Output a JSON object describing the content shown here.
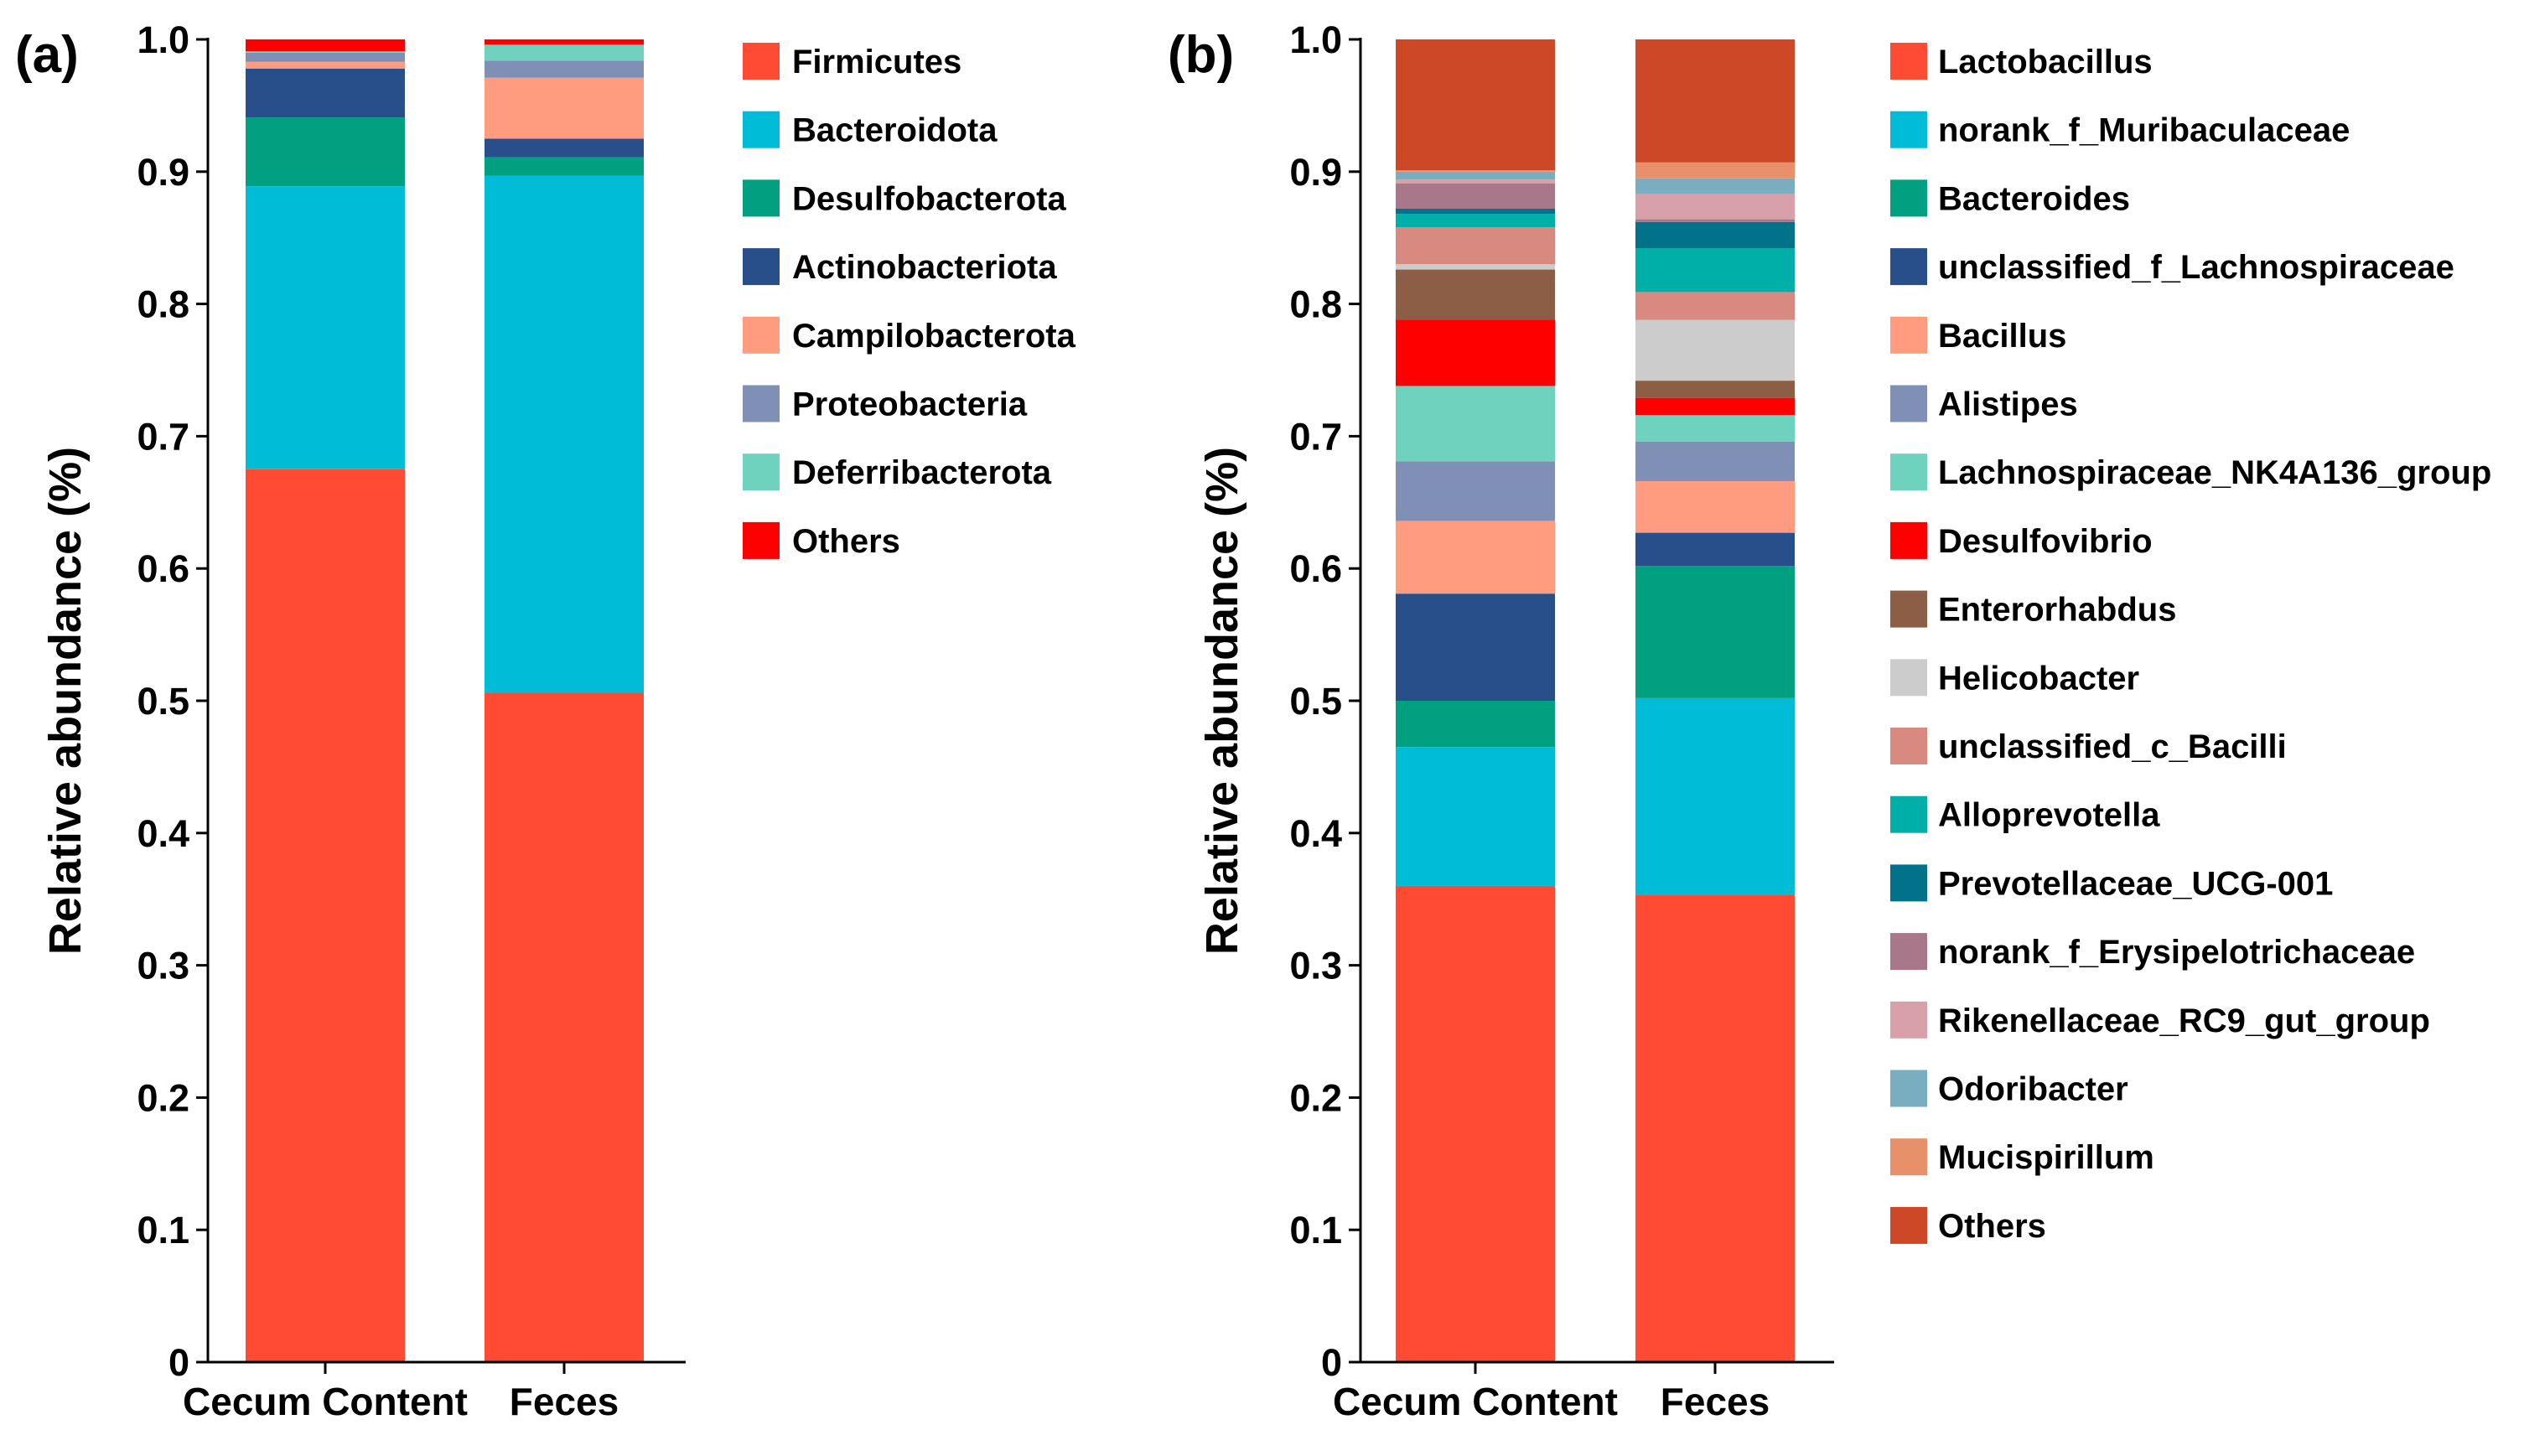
{
  "chart_data": [
    {
      "type": "bar",
      "stacked": true,
      "panel_label": "(a)",
      "ylabel": "Relative abundance (%)",
      "ylim": [
        0,
        1.0
      ],
      "yticks": [
        "0",
        "0.1",
        "0.2",
        "0.3",
        "0.4",
        "0.5",
        "0.6",
        "0.7",
        "0.8",
        "0.9",
        "1.0"
      ],
      "categories": [
        "Cecum Content",
        "Feces"
      ],
      "series": [
        {
          "name": "Firmicutes",
          "color": "#FF4B33",
          "values": [
            0.675,
            0.506
          ]
        },
        {
          "name": "Bacteroidota",
          "color": "#00BCD6",
          "values": [
            0.214,
            0.391
          ]
        },
        {
          "name": "Desulfobacterota",
          "color": "#00A080",
          "values": [
            0.052,
            0.014
          ]
        },
        {
          "name": "Actinobacteriota",
          "color": "#284F8A",
          "values": [
            0.037,
            0.014
          ]
        },
        {
          "name": "Campilobacterota",
          "color": "#FF9C80",
          "values": [
            0.005,
            0.046
          ]
        },
        {
          "name": "Proteobacteria",
          "color": "#7F8FB5",
          "values": [
            0.007,
            0.013
          ]
        },
        {
          "name": "Deferribacterota",
          "color": "#6FD2BF",
          "values": [
            0.001,
            0.012
          ]
        },
        {
          "name": "Others",
          "color": "#FF0000",
          "values": [
            0.009,
            0.004
          ]
        }
      ]
    },
    {
      "type": "bar",
      "stacked": true,
      "panel_label": "(b)",
      "ylabel": "Relative abundance (%)",
      "ylim": [
        0,
        1.0
      ],
      "yticks": [
        "0",
        "0.1",
        "0.2",
        "0.3",
        "0.4",
        "0.5",
        "0.6",
        "0.7",
        "0.8",
        "0.9",
        "1.0"
      ],
      "categories": [
        "Cecum Content",
        "Feces"
      ],
      "series": [
        {
          "name": "Lactobacillus",
          "color": "#FF4B33",
          "values": [
            0.36,
            0.353
          ]
        },
        {
          "name": "norank_f_Muribaculaceae",
          "color": "#00BCD6",
          "values": [
            0.105,
            0.149
          ]
        },
        {
          "name": "Bacteroides",
          "color": "#00A080",
          "values": [
            0.035,
            0.1
          ]
        },
        {
          "name": "unclassified_f_Lachnospiraceae",
          "color": "#284F8A",
          "values": [
            0.081,
            0.025
          ]
        },
        {
          "name": "Bacillus",
          "color": "#FF9C80",
          "values": [
            0.055,
            0.039
          ]
        },
        {
          "name": "Alistipes",
          "color": "#7F8FB5",
          "values": [
            0.045,
            0.03
          ]
        },
        {
          "name": "Lachnospiraceae_NK4A136_group",
          "color": "#6FD2BF",
          "values": [
            0.057,
            0.02
          ]
        },
        {
          "name": "Desulfovibrio",
          "color": "#FF0000",
          "values": [
            0.05,
            0.013
          ]
        },
        {
          "name": "Enterorhabdus",
          "color": "#8B5E45",
          "values": [
            0.038,
            0.013
          ]
        },
        {
          "name": "Helicobacter",
          "color": "#CCCCCC",
          "values": [
            0.004,
            0.046
          ]
        },
        {
          "name": "unclassified_c_Bacilli",
          "color": "#D88A80",
          "values": [
            0.028,
            0.021
          ]
        },
        {
          "name": "Alloprevotella",
          "color": "#00AFA8",
          "values": [
            0.01,
            0.033
          ]
        },
        {
          "name": "Prevotellaceae_UCG-001",
          "color": "#00728A",
          "values": [
            0.004,
            0.02
          ]
        },
        {
          "name": "norank_f_Erysipelotrichaceae",
          "color": "#A8788A",
          "values": [
            0.019,
            0.002
          ]
        },
        {
          "name": "Rikenellaceae_RC9_gut_group",
          "color": "#D8A0A8",
          "values": [
            0.003,
            0.019
          ]
        },
        {
          "name": "Odoribacter",
          "color": "#78AEBF",
          "values": [
            0.006,
            0.012
          ]
        },
        {
          "name": "Mucispirillum",
          "color": "#E8906A",
          "values": [
            0.001,
            0.012
          ]
        },
        {
          "name": "Others",
          "color": "#CC4826",
          "values": [
            0.099,
            0.093
          ]
        }
      ]
    }
  ]
}
